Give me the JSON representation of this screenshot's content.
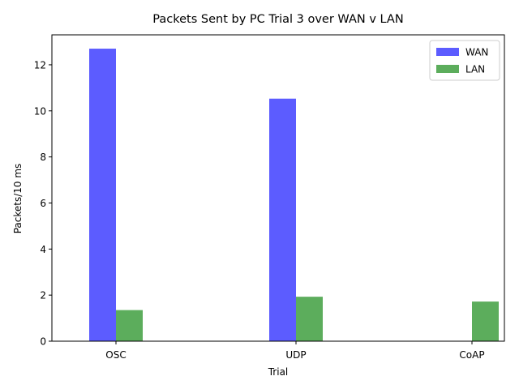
{
  "chart_data": {
    "type": "bar",
    "title": "Packets Sent by PC Trial 3 over WAN v LAN",
    "xlabel": "Trial",
    "ylabel": "Packets/10 ms",
    "categories": [
      "OSC",
      "UDP",
      "CoAP"
    ],
    "series": [
      {
        "name": "WAN",
        "color": "#3333ff",
        "values": [
          12.7,
          10.53,
          0
        ]
      },
      {
        "name": "LAN",
        "color": "#339933",
        "values": [
          1.35,
          1.93,
          1.72
        ]
      }
    ],
    "ylim": [
      0,
      13.3
    ],
    "yticks": [
      0,
      2,
      4,
      6,
      8,
      10,
      12
    ],
    "legend_position": "top-right",
    "grid": false
  }
}
